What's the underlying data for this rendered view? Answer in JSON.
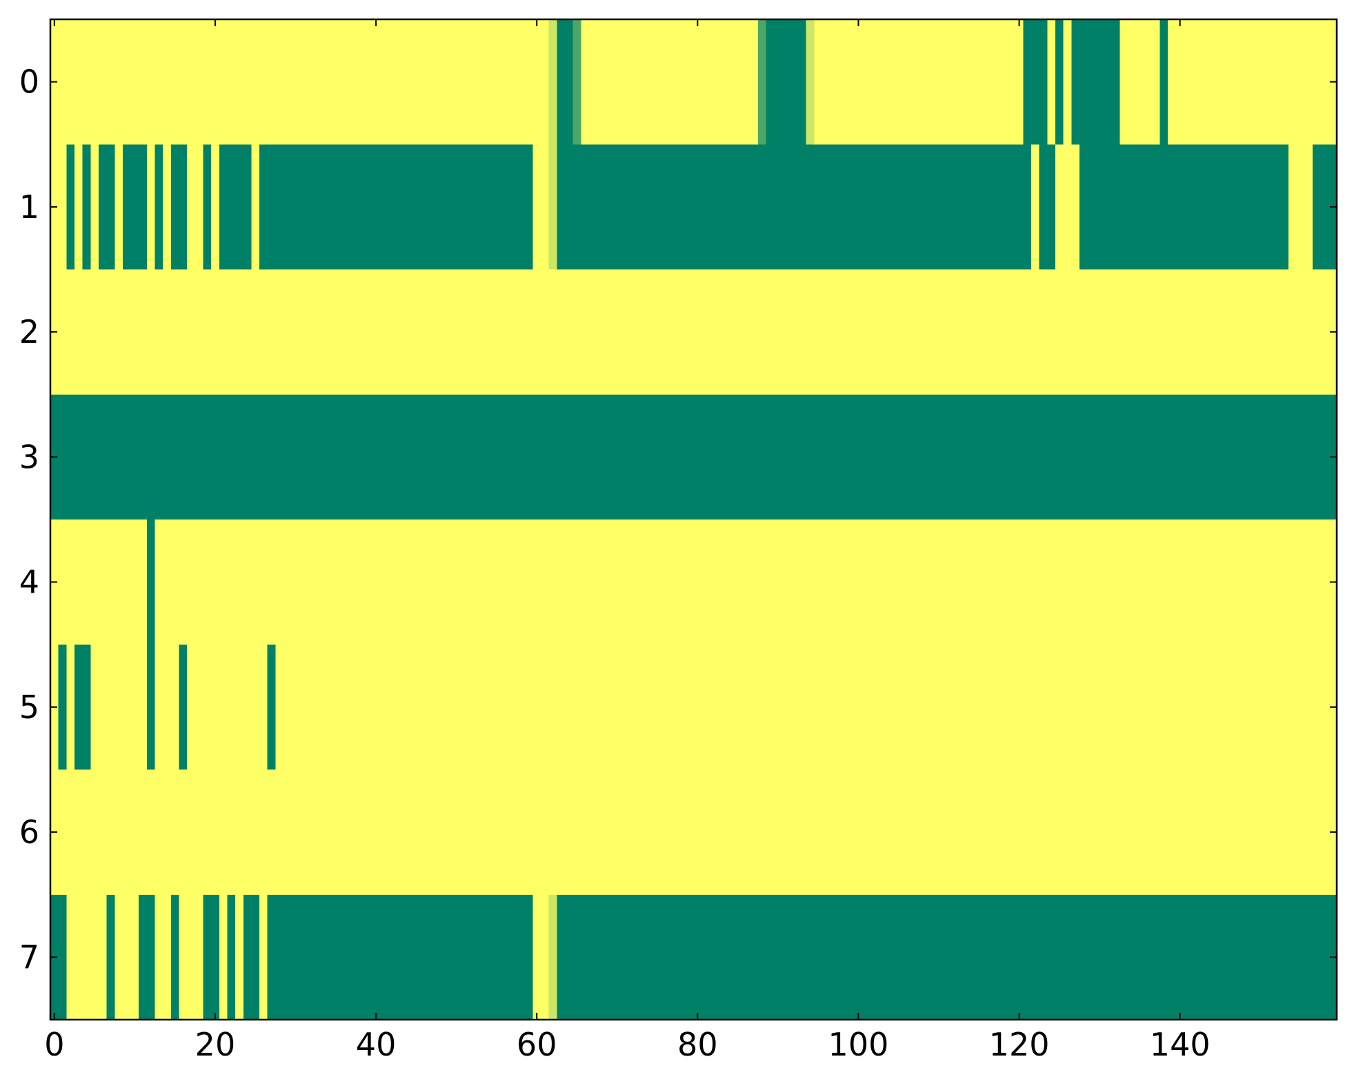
{
  "chart_data": {
    "type": "heatmap",
    "colors": [
      "#008066",
      "#ffff66"
    ],
    "xlim": [
      -0.5,
      159.5
    ],
    "ylim": [
      7.5,
      -0.5
    ],
    "xticks": [
      0,
      20,
      40,
      60,
      80,
      100,
      120,
      140
    ],
    "yticks": [
      0,
      1,
      2,
      3,
      4,
      5,
      6,
      7
    ],
    "values": [
      [
        1,
        1,
        1,
        1,
        1,
        1,
        1,
        1,
        1,
        1,
        1,
        1,
        1,
        1,
        1,
        1,
        1,
        1,
        1,
        1,
        1,
        1,
        1,
        1,
        1,
        1,
        1,
        1,
        1,
        1,
        1,
        1,
        1,
        1,
        1,
        1,
        1,
        1,
        1,
        1,
        1,
        1,
        1,
        1,
        1,
        1,
        1,
        1,
        1,
        1,
        1,
        1,
        1,
        1,
        1,
        1,
        1,
        1,
        1,
        1,
        1,
        1,
        0.8,
        0,
        0,
        0.3,
        1,
        1,
        1,
        1,
        1,
        1,
        1,
        1,
        1,
        1,
        1,
        1,
        1,
        1,
        1,
        1,
        1,
        1,
        1,
        1,
        1,
        1,
        0.3,
        0,
        0,
        0,
        0,
        0,
        0.8,
        1,
        1,
        1,
        1,
        1,
        1,
        1,
        1,
        1,
        1,
        1,
        1,
        1,
        1,
        1,
        1,
        1,
        1,
        1,
        1,
        1,
        1,
        1,
        1,
        1,
        1,
        0,
        0,
        0,
        1,
        0,
        1,
        0,
        0,
        0,
        0,
        0,
        0,
        1,
        1,
        1,
        1,
        1,
        0,
        1,
        1,
        1,
        1,
        1,
        1,
        1,
        1,
        1,
        1,
        1,
        1,
        1,
        1,
        1,
        1,
        1,
        1,
        1,
        1,
        1
      ],
      [
        1,
        1,
        0,
        1,
        0,
        1,
        0,
        0,
        1,
        0,
        0,
        0,
        1,
        0,
        1,
        0,
        0,
        1,
        1,
        0,
        1,
        0,
        0,
        0,
        0,
        1,
        0,
        0,
        0,
        0,
        0,
        0,
        0,
        0,
        0,
        0,
        0,
        0,
        0,
        0,
        0,
        0,
        0,
        0,
        0,
        0,
        0,
        0,
        0,
        0,
        0,
        0,
        0,
        0,
        0,
        0,
        0,
        0,
        0,
        0,
        1,
        1,
        0.8,
        0,
        0,
        0,
        0,
        0,
        0,
        0,
        0,
        0,
        0,
        0,
        0,
        0,
        0,
        0,
        0,
        0,
        0,
        0,
        0,
        0,
        0,
        0,
        0,
        0,
        0,
        0,
        0,
        0,
        0,
        0,
        0,
        0,
        0,
        0,
        0,
        0,
        0,
        0,
        0,
        0,
        0,
        0,
        0,
        0,
        0,
        0,
        0,
        0,
        0,
        0,
        0,
        0,
        0,
        0,
        0,
        0,
        0,
        0,
        1,
        0,
        0,
        1,
        1,
        1,
        0,
        0,
        0,
        0,
        0,
        0,
        0,
        0,
        0,
        0,
        0,
        0,
        0,
        0,
        0,
        0,
        0,
        0,
        0,
        0,
        0,
        0,
        0,
        0,
        0,
        0,
        1,
        1,
        1,
        0,
        0,
        0
      ],
      [
        1,
        1,
        1,
        1,
        1,
        1,
        1,
        1,
        1,
        1,
        1,
        1,
        1,
        1,
        1,
        1,
        1,
        1,
        1,
        1,
        1,
        1,
        1,
        1,
        1,
        1,
        1,
        1,
        1,
        1,
        1,
        1,
        1,
        1,
        1,
        1,
        1,
        1,
        1,
        1,
        1,
        1,
        1,
        1,
        1,
        1,
        1,
        1,
        1,
        1,
        1,
        1,
        1,
        1,
        1,
        1,
        1,
        1,
        1,
        1,
        1,
        1,
        1,
        1,
        1,
        1,
        1,
        1,
        1,
        1,
        1,
        1,
        1,
        1,
        1,
        1,
        1,
        1,
        1,
        1,
        1,
        1,
        1,
        1,
        1,
        1,
        1,
        1,
        1,
        1,
        1,
        1,
        1,
        1,
        1,
        1,
        1,
        1,
        1,
        1,
        1,
        1,
        1,
        1,
        1,
        1,
        1,
        1,
        1,
        1,
        1,
        1,
        1,
        1,
        1,
        1,
        1,
        1,
        1,
        1,
        1,
        1,
        1,
        1,
        1,
        1,
        1,
        1,
        1,
        1,
        1,
        1,
        1,
        1,
        1,
        1,
        1,
        1,
        1,
        1,
        1,
        1,
        1,
        1,
        1,
        1,
        1,
        1,
        1,
        1,
        1,
        1,
        1,
        1,
        1,
        1,
        1,
        1,
        1,
        1
      ],
      [
        0,
        0,
        0,
        0,
        0,
        0,
        0,
        0,
        0,
        0,
        0,
        0,
        0,
        0,
        0,
        0,
        0,
        0,
        0,
        0,
        0,
        0,
        0,
        0,
        0,
        0,
        0,
        0,
        0,
        0,
        0,
        0,
        0,
        0,
        0,
        0,
        0,
        0,
        0,
        0,
        0,
        0,
        0,
        0,
        0,
        0,
        0,
        0,
        0,
        0,
        0,
        0,
        0,
        0,
        0,
        0,
        0,
        0,
        0,
        0,
        0,
        0,
        0,
        0,
        0,
        0,
        0,
        0,
        0,
        0,
        0,
        0,
        0,
        0,
        0,
        0,
        0,
        0,
        0,
        0,
        0,
        0,
        0,
        0,
        0,
        0,
        0,
        0,
        0,
        0,
        0,
        0,
        0,
        0,
        0,
        0,
        0,
        0,
        0,
        0,
        0,
        0,
        0,
        0,
        0,
        0,
        0,
        0,
        0,
        0,
        0,
        0,
        0,
        0,
        0,
        0,
        0,
        0,
        0,
        0,
        0,
        0,
        0,
        0,
        0,
        0,
        0,
        0,
        0,
        0,
        0,
        0,
        0,
        0,
        0,
        0,
        0,
        0,
        0,
        0,
        0,
        0,
        0,
        0,
        0,
        0,
        0,
        0,
        0,
        0,
        0,
        0,
        0,
        0,
        0,
        0,
        0,
        0,
        0,
        0
      ],
      [
        1,
        1,
        1,
        1,
        1,
        1,
        1,
        1,
        1,
        1,
        1,
        1,
        0,
        1,
        1,
        1,
        1,
        1,
        1,
        1,
        1,
        1,
        1,
        1,
        1,
        1,
        1,
        1,
        1,
        1,
        1,
        1,
        1,
        1,
        1,
        1,
        1,
        1,
        1,
        1,
        1,
        1,
        1,
        1,
        1,
        1,
        1,
        1,
        1,
        1,
        1,
        1,
        1,
        1,
        1,
        1,
        1,
        1,
        1,
        1,
        1,
        1,
        1,
        1,
        1,
        1,
        1,
        1,
        1,
        1,
        1,
        1,
        1,
        1,
        1,
        1,
        1,
        1,
        1,
        1,
        1,
        1,
        1,
        1,
        1,
        1,
        1,
        1,
        1,
        1,
        1,
        1,
        1,
        1,
        1,
        1,
        1,
        1,
        1,
        1,
        1,
        1,
        1,
        1,
        1,
        1,
        1,
        1,
        1,
        1,
        1,
        1,
        1,
        1,
        1,
        1,
        1,
        1,
        1,
        1,
        1,
        1,
        1,
        1,
        1,
        1,
        1,
        1,
        1,
        1,
        1,
        1,
        1,
        1,
        1,
        1,
        1,
        1,
        1,
        1,
        1,
        1,
        1,
        1,
        1,
        1,
        1,
        1,
        1,
        1,
        1,
        1,
        1,
        1,
        1,
        1,
        1,
        1,
        1,
        1
      ],
      [
        1,
        0,
        1,
        0,
        0,
        1,
        1,
        1,
        1,
        1,
        1,
        1,
        0,
        1,
        1,
        1,
        0,
        1,
        1,
        1,
        1,
        1,
        1,
        1,
        1,
        1,
        1,
        0,
        1,
        1,
        1,
        1,
        1,
        1,
        1,
        1,
        1,
        1,
        1,
        1,
        1,
        1,
        1,
        1,
        1,
        1,
        1,
        1,
        1,
        1,
        1,
        1,
        1,
        1,
        1,
        1,
        1,
        1,
        1,
        1,
        1,
        1,
        1,
        1,
        1,
        1,
        1,
        1,
        1,
        1,
        1,
        1,
        1,
        1,
        1,
        1,
        1,
        1,
        1,
        1,
        1,
        1,
        1,
        1,
        1,
        1,
        1,
        1,
        1,
        1,
        1,
        1,
        1,
        1,
        1,
        1,
        1,
        1,
        1,
        1,
        1,
        1,
        1,
        1,
        1,
        1,
        1,
        1,
        1,
        1,
        1,
        1,
        1,
        1,
        1,
        1,
        1,
        1,
        1,
        1,
        1,
        1,
        1,
        1,
        1,
        1,
        1,
        1,
        1,
        1,
        1,
        1,
        1,
        1,
        1,
        1,
        1,
        1,
        1,
        1,
        1,
        1,
        1,
        1,
        1,
        1,
        1,
        1,
        1,
        1,
        1,
        1,
        1,
        1,
        1,
        1,
        1,
        1,
        1,
        1
      ],
      [
        1,
        1,
        1,
        1,
        1,
        1,
        1,
        1,
        1,
        1,
        1,
        1,
        1,
        1,
        1,
        1,
        1,
        1,
        1,
        1,
        1,
        1,
        1,
        1,
        1,
        1,
        1,
        1,
        1,
        1,
        1,
        1,
        1,
        1,
        1,
        1,
        1,
        1,
        1,
        1,
        1,
        1,
        1,
        1,
        1,
        1,
        1,
        1,
        1,
        1,
        1,
        1,
        1,
        1,
        1,
        1,
        1,
        1,
        1,
        1,
        1,
        1,
        1,
        1,
        1,
        1,
        1,
        1,
        1,
        1,
        1,
        1,
        1,
        1,
        1,
        1,
        1,
        1,
        1,
        1,
        1,
        1,
        1,
        1,
        1,
        1,
        1,
        1,
        1,
        1,
        1,
        1,
        1,
        1,
        1,
        1,
        1,
        1,
        1,
        1,
        1,
        1,
        1,
        1,
        1,
        1,
        1,
        1,
        1,
        1,
        1,
        1,
        1,
        1,
        1,
        1,
        1,
        1,
        1,
        1,
        1,
        1,
        1,
        1,
        1,
        1,
        1,
        1,
        1,
        1,
        1,
        1,
        1,
        1,
        1,
        1,
        1,
        1,
        1,
        1,
        1,
        1,
        1,
        1,
        1,
        1,
        1,
        1,
        1,
        1,
        1,
        1,
        1,
        1,
        1,
        1,
        1,
        1,
        1,
        1
      ],
      [
        0,
        0,
        1,
        1,
        1,
        1,
        1,
        0,
        1,
        1,
        1,
        0,
        0,
        1,
        1,
        0,
        1,
        1,
        1,
        0,
        0,
        1,
        0,
        1,
        0,
        0,
        1,
        0,
        0,
        0,
        0,
        0,
        0,
        0,
        0,
        0,
        0,
        0,
        0,
        0,
        0,
        0,
        0,
        0,
        0,
        0,
        0,
        0,
        0,
        0,
        0,
        0,
        0,
        0,
        0,
        0,
        0,
        0,
        0,
        0,
        1,
        1,
        0.8,
        0,
        0,
        0,
        0,
        0,
        0,
        0,
        0,
        0,
        0,
        0,
        0,
        0,
        0,
        0,
        0,
        0,
        0,
        0,
        0,
        0,
        0,
        0,
        0,
        0,
        0,
        0,
        0,
        0,
        0,
        0,
        0,
        0,
        0,
        0,
        0,
        0,
        0,
        0,
        0,
        0,
        0,
        0,
        0,
        0,
        0,
        0,
        0,
        0,
        0,
        0,
        0,
        0,
        0,
        0,
        0,
        0,
        0,
        0,
        0,
        0,
        0,
        0,
        0,
        0,
        0,
        0,
        0,
        0,
        0,
        0,
        0,
        0,
        0,
        0,
        0,
        0,
        0,
        0,
        0,
        0,
        0,
        0,
        0,
        0,
        0,
        0,
        0,
        0,
        0,
        0,
        0,
        0,
        0,
        0,
        0,
        0
      ]
    ]
  }
}
